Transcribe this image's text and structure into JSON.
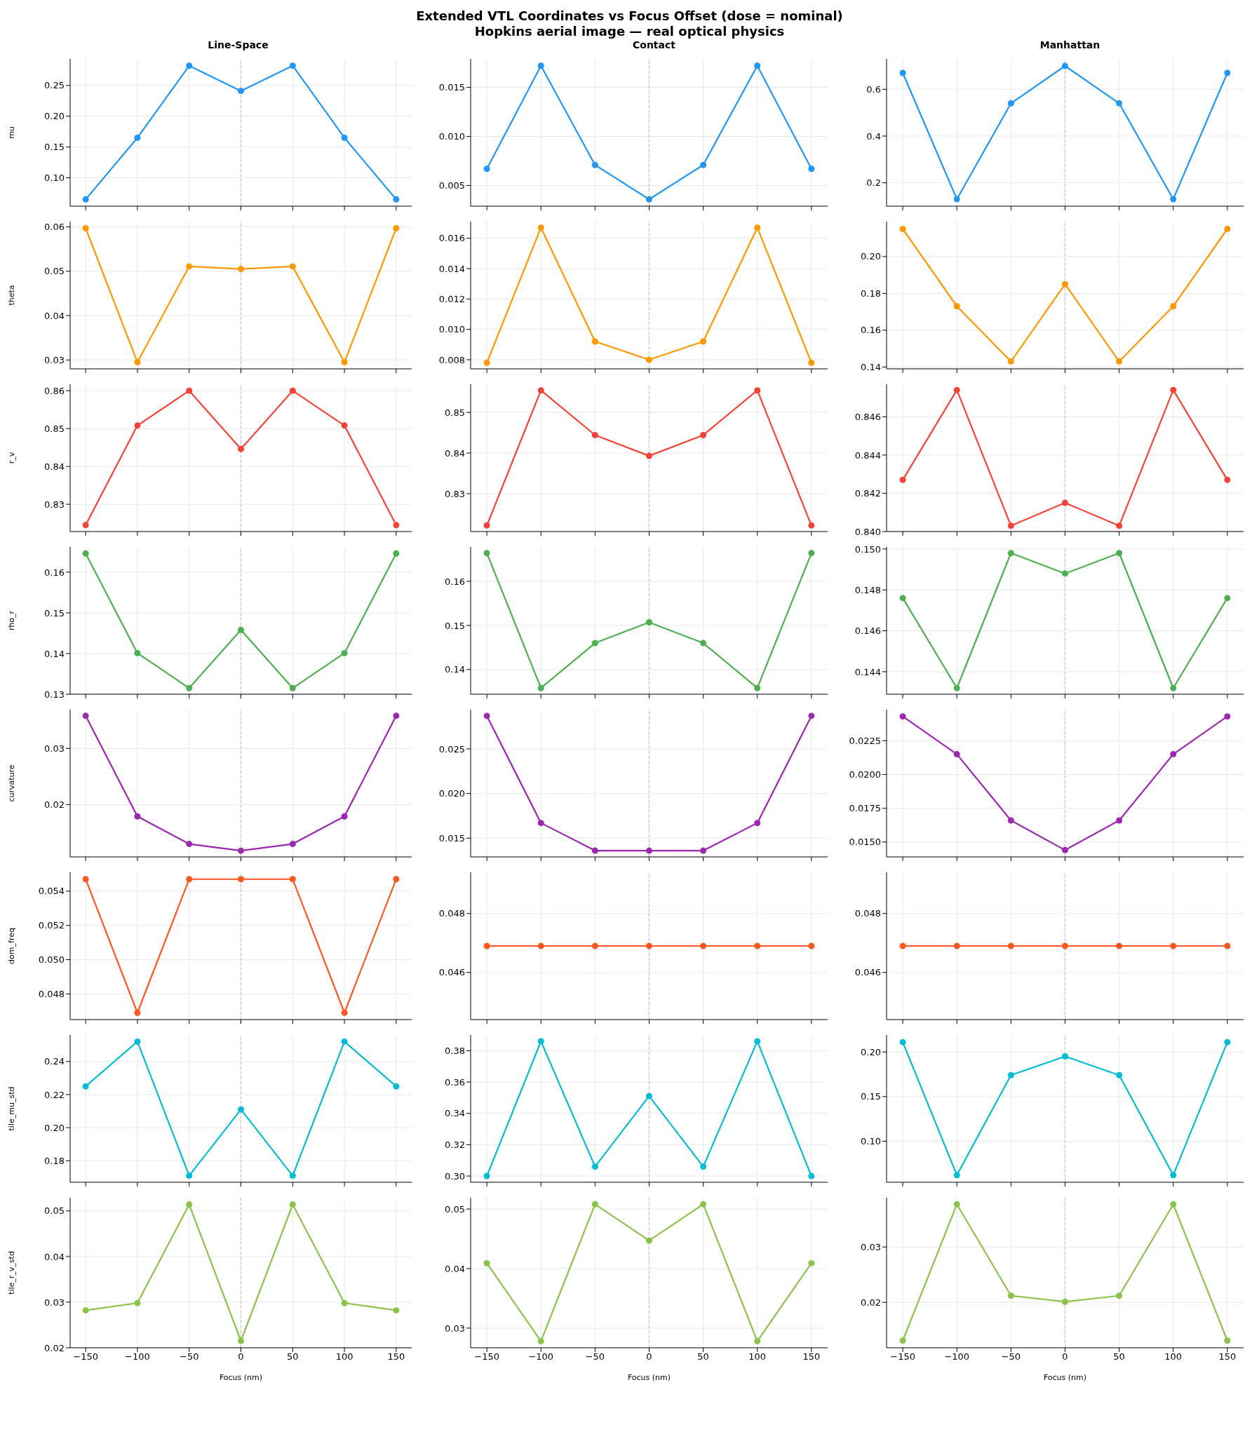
{
  "chart_data": [
    {
      "type": "other",
      "title": "Extended VTL Coordinates vs Focus Offset  (dose = nominal)",
      "subtitle": "Hopkins aerial image — real optical physics"
    },
    {
      "type": "line",
      "title": "Line-Space",
      "ylabel": "mu",
      "tick_labels": "y",
      "x": [
        -150,
        -100,
        -50,
        0,
        50,
        100,
        150
      ],
      "xlim": [
        -165,
        165
      ],
      "xticks": [
        -150,
        -100,
        -50,
        0,
        50,
        100,
        150
      ],
      "ylim": [
        0.054,
        0.293
      ],
      "yticks": [
        {
          "value": 0.1,
          "label": "0.10"
        },
        0.15,
        {
          "value": 0.2,
          "label": "0.20"
        },
        0.25
      ],
      "series": [
        {
          "color": "#2196f3",
          "values": [
            0.065,
            0.165,
            0.282,
            0.241,
            0.282,
            0.165,
            0.065
          ]
        }
      ],
      "grid": true,
      "marker": "circle",
      "ref_lines": [
        {
          "axis": "x",
          "value": 0,
          "color": "#bbbbbb",
          "line_style": "dashed"
        }
      ]
    },
    {
      "type": "line",
      "title": "Contact",
      "tick_labels": "y",
      "x": [
        -150,
        -100,
        -50,
        0,
        50,
        100,
        150
      ],
      "xlim": [
        -165,
        165
      ],
      "xticks": [
        -150,
        -100,
        -50,
        0,
        50,
        100,
        150
      ],
      "ylim": [
        0.0029,
        0.0179
      ],
      "yticks": [
        0.005,
        {
          "value": 0.01,
          "label": "0.010"
        },
        0.015
      ],
      "series": [
        {
          "color": "#2196f3",
          "values": [
            0.0067,
            0.0172,
            0.0071,
            0.0036,
            0.0071,
            0.0172,
            0.0067
          ]
        }
      ],
      "grid": true,
      "marker": "circle",
      "ref_lines": [
        {
          "axis": "x",
          "value": 0,
          "color": "#bbbbbb",
          "line_style": "dashed"
        }
      ]
    },
    {
      "type": "line",
      "title": "Manhattan",
      "tick_labels": "y",
      "x": [
        -150,
        -100,
        -50,
        0,
        50,
        100,
        150
      ],
      "xlim": [
        -165,
        165
      ],
      "xticks": [
        -150,
        -100,
        -50,
        0,
        50,
        100,
        150
      ],
      "ylim": [
        0.1,
        0.73
      ],
      "yticks": [
        0.2,
        0.4,
        0.6
      ],
      "series": [
        {
          "color": "#2196f3",
          "values": [
            0.67,
            0.13,
            0.54,
            0.7,
            0.54,
            0.13,
            0.67
          ]
        }
      ],
      "grid": true,
      "marker": "circle",
      "ref_lines": [
        {
          "axis": "x",
          "value": 0,
          "color": "#bbbbbb",
          "line_style": "dashed"
        }
      ]
    },
    {
      "type": "line",
      "ylabel": "theta",
      "tick_labels": "y",
      "x": [
        -150,
        -100,
        -50,
        0,
        50,
        100,
        150
      ],
      "xlim": [
        -165,
        165
      ],
      "xticks": [
        -150,
        -100,
        -50,
        0,
        50,
        100,
        150
      ],
      "ylim": [
        0.028,
        0.0612
      ],
      "yticks": [
        0.03,
        0.04,
        0.05,
        0.06
      ],
      "series": [
        {
          "color": "#ff9800",
          "values": [
            0.0597,
            0.0295,
            0.0511,
            0.0505,
            0.0511,
            0.0295,
            0.0597
          ]
        }
      ],
      "grid": true,
      "marker": "circle",
      "ref_lines": [
        {
          "axis": "x",
          "value": 0,
          "color": "#bbbbbb",
          "line_style": "dashed"
        }
      ]
    },
    {
      "type": "line",
      "tick_labels": "y",
      "x": [
        -150,
        -100,
        -50,
        0,
        50,
        100,
        150
      ],
      "xlim": [
        -165,
        165
      ],
      "xticks": [
        -150,
        -100,
        -50,
        0,
        50,
        100,
        150
      ],
      "ylim": [
        0.0074,
        0.0171
      ],
      "yticks": [
        0.008,
        {
          "value": 0.01,
          "label": "0.010"
        },
        0.012,
        0.014,
        0.016
      ],
      "series": [
        {
          "color": "#ff9800",
          "values": [
            0.0078,
            0.0167,
            0.0092,
            0.008,
            0.0092,
            0.0167,
            0.0078
          ]
        }
      ],
      "grid": true,
      "marker": "circle",
      "ref_lines": [
        {
          "axis": "x",
          "value": 0,
          "color": "#bbbbbb",
          "line_style": "dashed"
        }
      ]
    },
    {
      "type": "line",
      "tick_labels": "y",
      "x": [
        -150,
        -100,
        -50,
        0,
        50,
        100,
        150
      ],
      "xlim": [
        -165,
        165
      ],
      "xticks": [
        -150,
        -100,
        -50,
        0,
        50,
        100,
        150
      ],
      "ylim": [
        0.139,
        0.219
      ],
      "yticks": [
        0.14,
        0.16,
        0.18,
        {
          "value": 0.2,
          "label": "0.20"
        }
      ],
      "series": [
        {
          "color": "#ff9800",
          "values": [
            0.215,
            0.173,
            0.143,
            0.185,
            0.143,
            0.173,
            0.215
          ]
        }
      ],
      "grid": true,
      "marker": "circle",
      "ref_lines": [
        {
          "axis": "x",
          "value": 0,
          "color": "#bbbbbb",
          "line_style": "dashed"
        }
      ]
    },
    {
      "type": "line",
      "ylabel": "r_v",
      "tick_labels": "y",
      "x": [
        -150,
        -100,
        -50,
        0,
        50,
        100,
        150
      ],
      "xlim": [
        -165,
        165
      ],
      "xticks": [
        -150,
        -100,
        -50,
        0,
        50,
        100,
        150
      ],
      "ylim": [
        0.8228,
        0.8617
      ],
      "yticks": [
        0.83,
        0.84,
        0.85,
        0.86
      ],
      "series": [
        {
          "color": "#f44336",
          "values": [
            0.8245,
            0.8508,
            0.86,
            0.8446,
            0.86,
            0.8508,
            0.8245
          ]
        }
      ],
      "grid": true,
      "marker": "circle",
      "ref_lines": [
        {
          "axis": "x",
          "value": 0,
          "color": "#bbbbbb",
          "line_style": "dashed"
        }
      ]
    },
    {
      "type": "line",
      "tick_labels": "y",
      "x": [
        -150,
        -100,
        -50,
        0,
        50,
        100,
        150
      ],
      "xlim": [
        -165,
        165
      ],
      "xticks": [
        -150,
        -100,
        -50,
        0,
        50,
        100,
        150
      ],
      "ylim": [
        0.8207,
        0.8569
      ],
      "yticks": [
        0.83,
        0.84,
        0.85
      ],
      "series": [
        {
          "color": "#f44336",
          "values": [
            0.8222,
            0.8554,
            0.8444,
            0.8393,
            0.8444,
            0.8554,
            0.8222
          ]
        }
      ],
      "grid": true,
      "marker": "circle",
      "ref_lines": [
        {
          "axis": "x",
          "value": 0,
          "color": "#bbbbbb",
          "line_style": "dashed"
        }
      ]
    },
    {
      "type": "line",
      "tick_labels": "y",
      "x": [
        -150,
        -100,
        -50,
        0,
        50,
        100,
        150
      ],
      "xlim": [
        -165,
        165
      ],
      "xticks": [
        -150,
        -100,
        -50,
        0,
        50,
        100,
        150
      ],
      "ylim": [
        0.84,
        0.8477
      ],
      "yticks": [
        {
          "value": 0.84,
          "label": "0.840"
        },
        0.842,
        0.844,
        0.846
      ],
      "series": [
        {
          "color": "#f44336",
          "values": [
            0.8427,
            0.8474,
            0.8403,
            0.8415,
            0.8403,
            0.8474,
            0.8427
          ]
        }
      ],
      "grid": true,
      "marker": "circle",
      "ref_lines": [
        {
          "axis": "x",
          "value": 0,
          "color": "#bbbbbb",
          "line_style": "dashed"
        }
      ]
    },
    {
      "type": "line",
      "ylabel": "rho_r",
      "tick_labels": "y",
      "x": [
        -150,
        -100,
        -50,
        0,
        50,
        100,
        150
      ],
      "xlim": [
        -165,
        165
      ],
      "xticks": [
        -150,
        -100,
        -50,
        0,
        50,
        100,
        150
      ],
      "ylim": [
        0.13,
        0.1662
      ],
      "yticks": [
        0.13,
        0.14,
        0.15,
        0.16
      ],
      "series": [
        {
          "color": "#4caf50",
          "values": [
            0.1646,
            0.1401,
            0.1315,
            0.1458,
            0.1315,
            0.1401,
            0.1646
          ]
        }
      ],
      "grid": true,
      "marker": "circle",
      "ref_lines": [
        {
          "axis": "x",
          "value": 0,
          "color": "#bbbbbb",
          "line_style": "dashed"
        }
      ]
    },
    {
      "type": "line",
      "tick_labels": "y",
      "x": [
        -150,
        -100,
        -50,
        0,
        50,
        100,
        150
      ],
      "xlim": [
        -165,
        165
      ],
      "xticks": [
        -150,
        -100,
        -50,
        0,
        50,
        100,
        150
      ],
      "ylim": [
        0.1344,
        0.1678
      ],
      "yticks": [
        0.14,
        0.15,
        0.16
      ],
      "series": [
        {
          "color": "#4caf50",
          "values": [
            0.1664,
            0.1358,
            0.146,
            0.1507,
            0.146,
            0.1358,
            0.1664
          ]
        }
      ],
      "grid": true,
      "marker": "circle",
      "ref_lines": [
        {
          "axis": "x",
          "value": 0,
          "color": "#bbbbbb",
          "line_style": "dashed"
        }
      ]
    },
    {
      "type": "line",
      "tick_labels": "y",
      "x": [
        -150,
        -100,
        -50,
        0,
        50,
        100,
        150
      ],
      "xlim": [
        -165,
        165
      ],
      "xticks": [
        -150,
        -100,
        -50,
        0,
        50,
        100,
        150
      ],
      "ylim": [
        0.1429,
        0.1501
      ],
      "yticks": [
        0.144,
        0.146,
        0.148,
        {
          "value": 0.15,
          "label": "0.150"
        }
      ],
      "series": [
        {
          "color": "#4caf50",
          "values": [
            0.1476,
            0.1432,
            0.1498,
            0.1488,
            0.1498,
            0.1432,
            0.1476
          ]
        }
      ],
      "grid": true,
      "marker": "circle",
      "ref_lines": [
        {
          "axis": "x",
          "value": 0,
          "color": "#bbbbbb",
          "line_style": "dashed"
        }
      ]
    },
    {
      "type": "line",
      "ylabel": "curvature",
      "tick_labels": "y",
      "x": [
        -150,
        -100,
        -50,
        0,
        50,
        100,
        150
      ],
      "xlim": [
        -165,
        165
      ],
      "xticks": [
        -150,
        -100,
        -50,
        0,
        50,
        100,
        150
      ],
      "ylim": [
        0.0107,
        0.0369
      ],
      "yticks": [
        0.02,
        0.03
      ],
      "series": [
        {
          "color": "#9c27b0",
          "values": [
            0.0358,
            0.0179,
            0.013,
            0.0118,
            0.013,
            0.0179,
            0.0358
          ]
        }
      ],
      "grid": true,
      "marker": "circle",
      "ref_lines": [
        {
          "axis": "x",
          "value": 0,
          "color": "#bbbbbb",
          "line_style": "dashed"
        }
      ]
    },
    {
      "type": "line",
      "tick_labels": "y",
      "x": [
        -150,
        -100,
        -50,
        0,
        50,
        100,
        150
      ],
      "xlim": [
        -165,
        165
      ],
      "xticks": [
        -150,
        -100,
        -50,
        0,
        50,
        100,
        150
      ],
      "ylim": [
        0.0129,
        0.0294
      ],
      "yticks": [
        0.015,
        {
          "value": 0.02,
          "label": "0.020"
        },
        0.025
      ],
      "series": [
        {
          "color": "#9c27b0",
          "values": [
            0.0287,
            0.0167,
            0.0136,
            0.0136,
            0.0136,
            0.0167,
            0.0287
          ]
        }
      ],
      "grid": true,
      "marker": "circle",
      "ref_lines": [
        {
          "axis": "x",
          "value": 0,
          "color": "#bbbbbb",
          "line_style": "dashed"
        }
      ]
    },
    {
      "type": "line",
      "tick_labels": "y",
      "x": [
        -150,
        -100,
        -50,
        0,
        50,
        100,
        150
      ],
      "xlim": [
        -165,
        165
      ],
      "xticks": [
        -150,
        -100,
        -50,
        0,
        50,
        100,
        150
      ],
      "ylim": [
        0.0139,
        0.0248
      ],
      "yticks": [
        {
          "value": 0.015,
          "label": "0.0150"
        },
        0.0175,
        {
          "value": 0.02,
          "label": "0.0200"
        },
        0.0225
      ],
      "series": [
        {
          "color": "#9c27b0",
          "values": [
            0.0243,
            0.0215,
            0.0166,
            0.0144,
            0.0166,
            0.0215,
            0.0243
          ]
        }
      ],
      "grid": true,
      "marker": "circle",
      "ref_lines": [
        {
          "axis": "x",
          "value": 0,
          "color": "#bbbbbb",
          "line_style": "dashed"
        }
      ]
    },
    {
      "type": "line",
      "ylabel": "dom_freq",
      "tick_labels": "y",
      "x": [
        -150,
        -100,
        -50,
        0,
        50,
        100,
        150
      ],
      "xlim": [
        -165,
        165
      ],
      "xticks": [
        -150,
        -100,
        -50,
        0,
        50,
        100,
        150
      ],
      "ylim": [
        0.0465,
        0.0551
      ],
      "yticks": [
        0.048,
        {
          "value": 0.05,
          "label": "0.050"
        },
        0.052,
        0.054
      ],
      "series": [
        {
          "color": "#ff5722",
          "values": [
            0.0547,
            0.0469,
            0.0547,
            0.0547,
            0.0547,
            0.0469,
            0.0547
          ]
        }
      ],
      "grid": true,
      "marker": "circle",
      "ref_lines": [
        {
          "axis": "x",
          "value": 0,
          "color": "#bbbbbb",
          "line_style": "dashed"
        }
      ]
    },
    {
      "type": "line",
      "tick_labels": "y",
      "x": [
        -150,
        -100,
        -50,
        0,
        50,
        100,
        150
      ],
      "xlim": [
        -165,
        165
      ],
      "xticks": [
        -150,
        -100,
        -50,
        0,
        50,
        100,
        150
      ],
      "ylim": [
        0.0444,
        0.0494
      ],
      "yticks": [
        0.046,
        0.048
      ],
      "series": [
        {
          "color": "#ff5722",
          "values": [
            0.0469,
            0.0469,
            0.0469,
            0.0469,
            0.0469,
            0.0469,
            0.0469
          ]
        }
      ],
      "grid": true,
      "marker": "circle",
      "ref_lines": [
        {
          "axis": "x",
          "value": 0,
          "color": "#bbbbbb",
          "line_style": "dashed"
        }
      ]
    },
    {
      "type": "line",
      "tick_labels": "y",
      "x": [
        -150,
        -100,
        -50,
        0,
        50,
        100,
        150
      ],
      "xlim": [
        -165,
        165
      ],
      "xticks": [
        -150,
        -100,
        -50,
        0,
        50,
        100,
        150
      ],
      "ylim": [
        0.0444,
        0.0494
      ],
      "yticks": [
        0.046,
        0.048
      ],
      "series": [
        {
          "color": "#ff5722",
          "values": [
            0.0469,
            0.0469,
            0.0469,
            0.0469,
            0.0469,
            0.0469,
            0.0469
          ]
        }
      ],
      "grid": true,
      "marker": "circle",
      "ref_lines": [
        {
          "axis": "x",
          "value": 0,
          "color": "#bbbbbb",
          "line_style": "dashed"
        }
      ]
    },
    {
      "type": "line",
      "ylabel": "tile_mu_std",
      "tick_labels": "y",
      "x": [
        -150,
        -100,
        -50,
        0,
        50,
        100,
        150
      ],
      "xlim": [
        -165,
        165
      ],
      "xticks": [
        -150,
        -100,
        -50,
        0,
        50,
        100,
        150
      ],
      "ylim": [
        0.167,
        0.256
      ],
      "yticks": [
        0.18,
        {
          "value": 0.2,
          "label": "0.20"
        },
        0.22,
        0.24
      ],
      "series": [
        {
          "color": "#00bcd4",
          "values": [
            0.225,
            0.252,
            0.171,
            0.211,
            0.171,
            0.252,
            0.225
          ]
        }
      ],
      "grid": true,
      "marker": "circle",
      "ref_lines": [
        {
          "axis": "x",
          "value": 0,
          "color": "#bbbbbb",
          "line_style": "dashed"
        }
      ]
    },
    {
      "type": "line",
      "tick_labels": "y",
      "x": [
        -150,
        -100,
        -50,
        0,
        50,
        100,
        150
      ],
      "xlim": [
        -165,
        165
      ],
      "xticks": [
        -150,
        -100,
        -50,
        0,
        50,
        100,
        150
      ],
      "ylim": [
        0.296,
        0.39
      ],
      "yticks": [
        {
          "value": 0.3,
          "label": "0.30"
        },
        0.32,
        0.34,
        0.36,
        0.38
      ],
      "series": [
        {
          "color": "#00bcd4",
          "values": [
            0.3,
            0.386,
            0.306,
            0.351,
            0.306,
            0.386,
            0.3
          ]
        }
      ],
      "grid": true,
      "marker": "circle",
      "ref_lines": [
        {
          "axis": "x",
          "value": 0,
          "color": "#bbbbbb",
          "line_style": "dashed"
        }
      ]
    },
    {
      "type": "line",
      "tick_labels": "y",
      "x": [
        -150,
        -100,
        -50,
        0,
        50,
        100,
        150
      ],
      "xlim": [
        -165,
        165
      ],
      "xticks": [
        -150,
        -100,
        -50,
        0,
        50,
        100,
        150
      ],
      "ylim": [
        0.054,
        0.219
      ],
      "yticks": [
        {
          "value": 0.1,
          "label": "0.10"
        },
        0.15,
        {
          "value": 0.2,
          "label": "0.20"
        }
      ],
      "series": [
        {
          "color": "#00bcd4",
          "values": [
            0.211,
            0.062,
            0.174,
            0.195,
            0.174,
            0.062,
            0.211
          ]
        }
      ],
      "grid": true,
      "marker": "circle",
      "ref_lines": [
        {
          "axis": "x",
          "value": 0,
          "color": "#bbbbbb",
          "line_style": "dashed"
        }
      ]
    },
    {
      "type": "line",
      "ylabel": "tile_r_v_std",
      "xlabel": "Focus (nm)",
      "x": [
        -150,
        -100,
        -50,
        0,
        50,
        100,
        150
      ],
      "xlim": [
        -165,
        165
      ],
      "xticks": [
        {
          "value": -150,
          "label": "−150"
        },
        {
          "value": -100,
          "label": "−100"
        },
        {
          "value": -50,
          "label": "−50"
        },
        0,
        50,
        100,
        150
      ],
      "ylim": [
        0.02,
        0.0529
      ],
      "yticks": [
        0.02,
        0.03,
        0.04,
        0.05
      ],
      "series": [
        {
          "color": "#8bc34a",
          "values": [
            0.0282,
            0.0298,
            0.0514,
            0.0215,
            0.0514,
            0.0298,
            0.0282
          ]
        }
      ],
      "grid": true,
      "marker": "circle",
      "ref_lines": [
        {
          "axis": "x",
          "value": 0,
          "color": "#bbbbbb",
          "line_style": "dashed"
        }
      ]
    },
    {
      "type": "line",
      "xlabel": "Focus (nm)",
      "x": [
        -150,
        -100,
        -50,
        0,
        50,
        100,
        150
      ],
      "xlim": [
        -165,
        165
      ],
      "xticks": [
        {
          "value": -150,
          "label": "−150"
        },
        {
          "value": -100,
          "label": "−100"
        },
        {
          "value": -50,
          "label": "−50"
        },
        0,
        50,
        100,
        150
      ],
      "ylim": [
        0.0267,
        0.0519
      ],
      "yticks": [
        0.03,
        0.04,
        0.05
      ],
      "series": [
        {
          "color": "#8bc34a",
          "values": [
            0.0409,
            0.0278,
            0.0508,
            0.0447,
            0.0508,
            0.0278,
            0.0409
          ]
        }
      ],
      "grid": true,
      "marker": "circle",
      "ref_lines": [
        {
          "axis": "x",
          "value": 0,
          "color": "#bbbbbb",
          "line_style": "dashed"
        }
      ]
    },
    {
      "type": "line",
      "xlabel": "Focus (nm)",
      "x": [
        -150,
        -100,
        -50,
        0,
        50,
        100,
        150
      ],
      "xlim": [
        -165,
        165
      ],
      "xticks": [
        {
          "value": -150,
          "label": "−150"
        },
        {
          "value": -100,
          "label": "−100"
        },
        {
          "value": -50,
          "label": "−50"
        },
        0,
        50,
        100,
        150
      ],
      "ylim": [
        0.0118,
        0.0389
      ],
      "yticks": [
        0.02,
        0.03
      ],
      "series": [
        {
          "color": "#8bc34a",
          "values": [
            0.0131,
            0.0377,
            0.0212,
            0.0201,
            0.0212,
            0.0377,
            0.0131
          ]
        }
      ],
      "grid": true,
      "marker": "circle",
      "ref_lines": [
        {
          "axis": "x",
          "value": 0,
          "color": "#bbbbbb",
          "line_style": "dashed"
        }
      ]
    }
  ]
}
